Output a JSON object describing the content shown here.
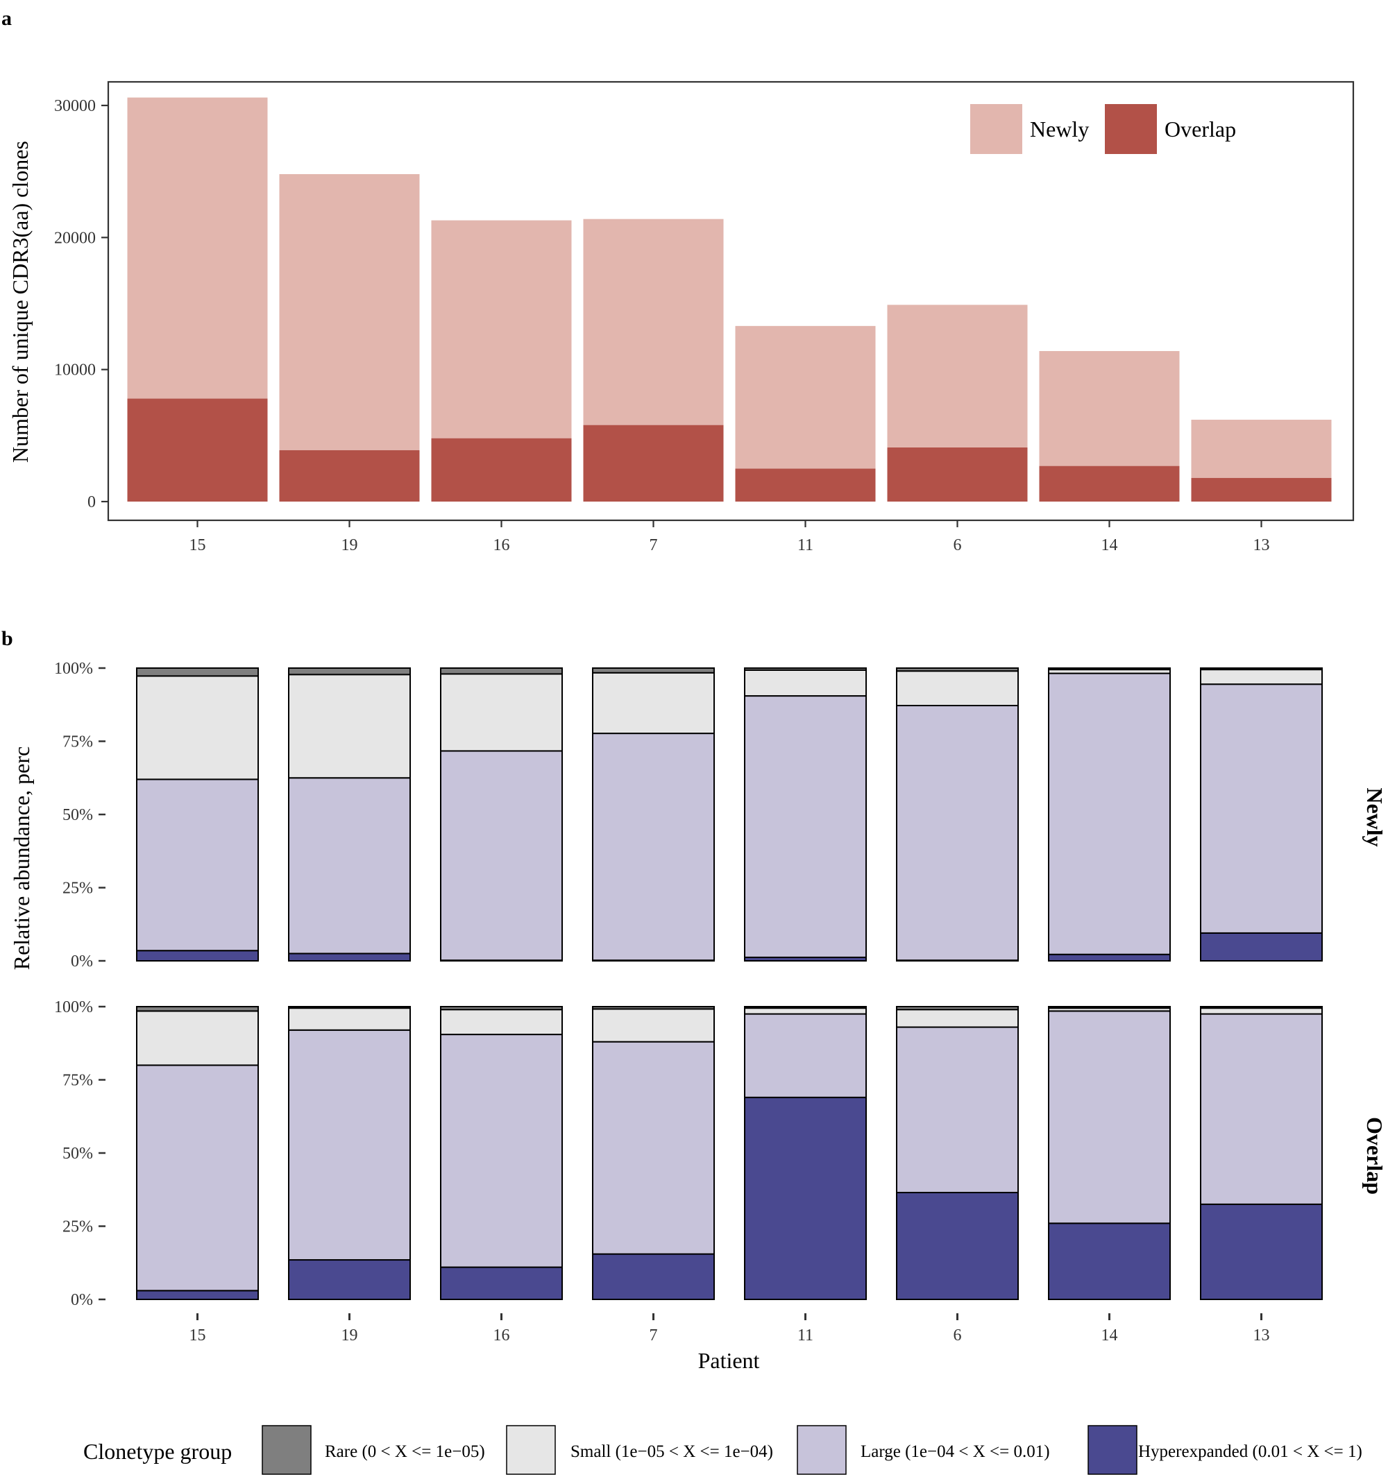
{
  "panels": {
    "a_label": "a",
    "b_label": "b"
  },
  "chart_data": [
    {
      "type": "bar",
      "stacked": true,
      "categories": [
        "15",
        "19",
        "16",
        "7",
        "11",
        "6",
        "14",
        "13"
      ],
      "series": [
        {
          "name": "Newly",
          "color": "#e2b6ae",
          "values": [
            22800,
            20900,
            16500,
            15600,
            10800,
            10800,
            8700,
            4400
          ]
        },
        {
          "name": "Overlap",
          "color": "#b25148",
          "values": [
            7800,
            3900,
            4800,
            5800,
            2500,
            4100,
            2700,
            1800
          ]
        }
      ],
      "ylabel": "Number of unique CDR3(aa) clones",
      "yticks": [
        "0",
        "10000",
        "20000",
        "30000"
      ],
      "ylim": [
        0,
        31500
      ],
      "legend_placement": "top-right"
    },
    {
      "type": "bar",
      "stacked": true,
      "percent": true,
      "categories": [
        "15",
        "19",
        "16",
        "7",
        "11",
        "6",
        "14",
        "13"
      ],
      "facets": [
        "Newly",
        "Overlap"
      ],
      "xlabel": "Patient",
      "ylabel": "Relative abundance, perc",
      "yticks": [
        "0%",
        "25%",
        "50%",
        "75%",
        "100%"
      ],
      "legend_title": "Clonetype group",
      "legend_placement": "bottom",
      "groups": [
        {
          "name": "Rare (0 < X <= 1e−05)",
          "color": "#7f7f7f"
        },
        {
          "name": "Small (1e−05 < X <= 1e−04)",
          "color": "#e6e6e6"
        },
        {
          "name": "Large (1e−04 < X <= 0.01)",
          "color": "#c7c3da"
        },
        {
          "name": "Hyperexpanded (0.01 < X <= 1)",
          "color": "#4a4990"
        }
      ],
      "values": {
        "Newly": {
          "Hyperexpanded": [
            3.5,
            2.5,
            0.2,
            0.2,
            1.2,
            0.2,
            2.2,
            9.5
          ],
          "Large": [
            58.5,
            60.0,
            71.5,
            77.5,
            89.3,
            87.0,
            96.0,
            85.0
          ],
          "Small": [
            35.3,
            35.3,
            26.3,
            20.7,
            8.8,
            11.8,
            1.3,
            5.0
          ],
          "Rare": [
            2.7,
            2.2,
            2.0,
            1.6,
            0.7,
            1.0,
            0.5,
            0.5
          ]
        },
        "Overlap": {
          "Hyperexpanded": [
            3.0,
            13.5,
            11.0,
            15.5,
            69.0,
            36.5,
            26.0,
            32.5
          ],
          "Large": [
            77.0,
            78.5,
            79.5,
            72.5,
            28.5,
            56.5,
            72.5,
            65.0
          ],
          "Small": [
            18.5,
            7.5,
            8.5,
            11.2,
            2.0,
            6.0,
            1.0,
            2.0
          ],
          "Rare": [
            1.5,
            0.5,
            1.0,
            0.8,
            0.5,
            1.0,
            0.5,
            0.5
          ]
        }
      }
    }
  ]
}
